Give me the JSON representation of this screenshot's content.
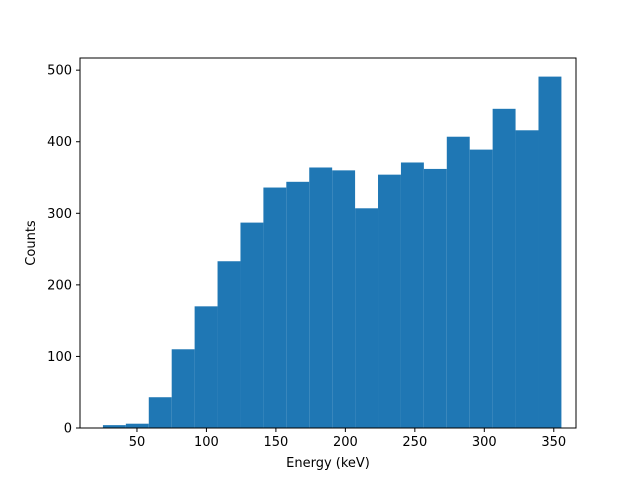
{
  "chart_data": {
    "type": "bar",
    "subtype": "histogram",
    "title": "",
    "xlabel": "Energy (keV)",
    "ylabel": "Counts",
    "xlim": [
      9,
      366
    ],
    "ylim": [
      0,
      517
    ],
    "xticks": [
      50,
      100,
      150,
      200,
      250,
      300,
      350
    ],
    "yticks": [
      0,
      100,
      200,
      300,
      400,
      500
    ],
    "grid": false,
    "bar_color": "#1f77b4",
    "bins": [
      {
        "x0": 25.5,
        "x1": 42.0,
        "count": 4
      },
      {
        "x0": 42.0,
        "x1": 58.5,
        "count": 6
      },
      {
        "x0": 58.5,
        "x1": 75.0,
        "count": 43
      },
      {
        "x0": 75.0,
        "x1": 91.5,
        "count": 110
      },
      {
        "x0": 91.5,
        "x1": 108.0,
        "count": 170
      },
      {
        "x0": 108.0,
        "x1": 124.5,
        "count": 233
      },
      {
        "x0": 124.5,
        "x1": 141.0,
        "count": 287
      },
      {
        "x0": 141.0,
        "x1": 157.5,
        "count": 336
      },
      {
        "x0": 157.5,
        "x1": 174.0,
        "count": 344
      },
      {
        "x0": 174.0,
        "x1": 190.5,
        "count": 364
      },
      {
        "x0": 190.5,
        "x1": 207.0,
        "count": 360
      },
      {
        "x0": 207.0,
        "x1": 223.5,
        "count": 307
      },
      {
        "x0": 223.5,
        "x1": 240.0,
        "count": 354
      },
      {
        "x0": 240.0,
        "x1": 256.5,
        "count": 371
      },
      {
        "x0": 256.5,
        "x1": 273.0,
        "count": 362
      },
      {
        "x0": 273.0,
        "x1": 289.5,
        "count": 407
      },
      {
        "x0": 289.5,
        "x1": 306.0,
        "count": 389
      },
      {
        "x0": 306.0,
        "x1": 322.5,
        "count": 446
      },
      {
        "x0": 322.5,
        "x1": 339.0,
        "count": 416
      },
      {
        "x0": 339.0,
        "x1": 355.5,
        "count": 491
      }
    ]
  }
}
